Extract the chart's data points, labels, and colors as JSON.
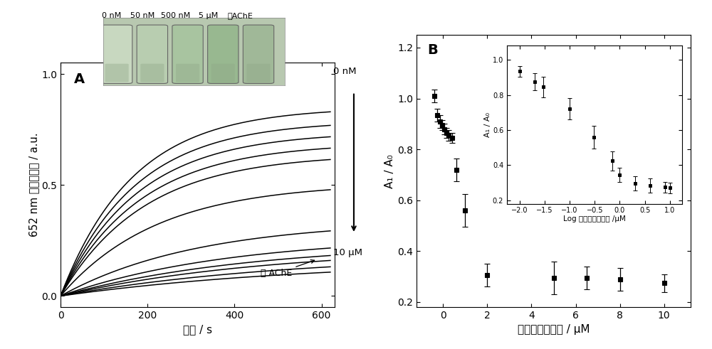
{
  "panel_A": {
    "label": "A",
    "xlabel": "时间 / s",
    "ylabel": "652 nm 处吸光度值 / a.u.",
    "xlim": [
      0,
      630
    ],
    "ylim": [
      -0.05,
      1.05
    ],
    "xticks": [
      0,
      200,
      400,
      600
    ],
    "yticks": [
      0.0,
      0.5,
      1.0
    ],
    "arrow_label_top": "0 nM",
    "arrow_label_bottom": "10 μM",
    "arrow_label_last": "无 AChE",
    "photo_labels": [
      "0 nM",
      "50 nM",
      "500 nM",
      "5 μM",
      "无AChE"
    ],
    "curves": {
      "end_values": [
        0.85,
        0.79,
        0.74,
        0.69,
        0.64,
        0.51,
        0.34,
        0.27,
        0.24,
        0.22,
        0.19,
        0.165
      ],
      "k_values": [
        0.006,
        0.0058,
        0.0056,
        0.0054,
        0.0052,
        0.0045,
        0.0032,
        0.0026,
        0.0023,
        0.0021,
        0.0019,
        0.0017
      ]
    }
  },
  "panel_B": {
    "label": "B",
    "xlabel": "甲基对氧膦浓度 / μM",
    "ylabel": "A₁ / A₀",
    "xlim": [
      -1.2,
      11.2
    ],
    "ylim": [
      0.18,
      1.25
    ],
    "xticks": [
      0,
      2,
      4,
      6,
      8,
      10
    ],
    "yticks": [
      0.2,
      0.4,
      0.6,
      0.8,
      1.0,
      1.2
    ],
    "x_data": [
      -0.4,
      -0.25,
      -0.15,
      -0.05,
      0.05,
      0.15,
      0.25,
      0.4,
      0.6,
      1.0,
      2.0,
      5.0,
      6.5,
      8.0,
      10.0
    ],
    "y_data": [
      1.01,
      0.935,
      0.91,
      0.895,
      0.88,
      0.865,
      0.855,
      0.845,
      0.72,
      0.56,
      0.305,
      0.295,
      0.295,
      0.29,
      0.275
    ],
    "y_err": [
      0.025,
      0.025,
      0.025,
      0.02,
      0.02,
      0.02,
      0.02,
      0.02,
      0.045,
      0.065,
      0.045,
      0.065,
      0.045,
      0.045,
      0.035
    ],
    "inset": {
      "xlabel": "Log 甲基对氧膦浓度 /μM",
      "ylabel": "A₁ / A₀",
      "xlim": [
        -2.25,
        1.25
      ],
      "ylim": [
        0.18,
        1.08
      ],
      "xticks": [
        -2.0,
        -1.5,
        -1.0,
        -0.5,
        0.0,
        0.5,
        1.0
      ],
      "yticks": [
        0.2,
        0.4,
        0.6,
        0.8,
        1.0
      ],
      "x_data": [
        -2.0,
        -1.7,
        -1.52,
        -1.0,
        -0.52,
        -0.15,
        0.0,
        0.3,
        0.6,
        0.9,
        1.0
      ],
      "y_data": [
        0.935,
        0.875,
        0.845,
        0.72,
        0.56,
        0.425,
        0.345,
        0.295,
        0.285,
        0.275,
        0.27
      ],
      "y_err": [
        0.03,
        0.05,
        0.06,
        0.06,
        0.065,
        0.055,
        0.04,
        0.04,
        0.04,
        0.03,
        0.03
      ]
    }
  },
  "bg_color": "#ffffff",
  "line_color": "#000000",
  "marker_color": "#000000"
}
